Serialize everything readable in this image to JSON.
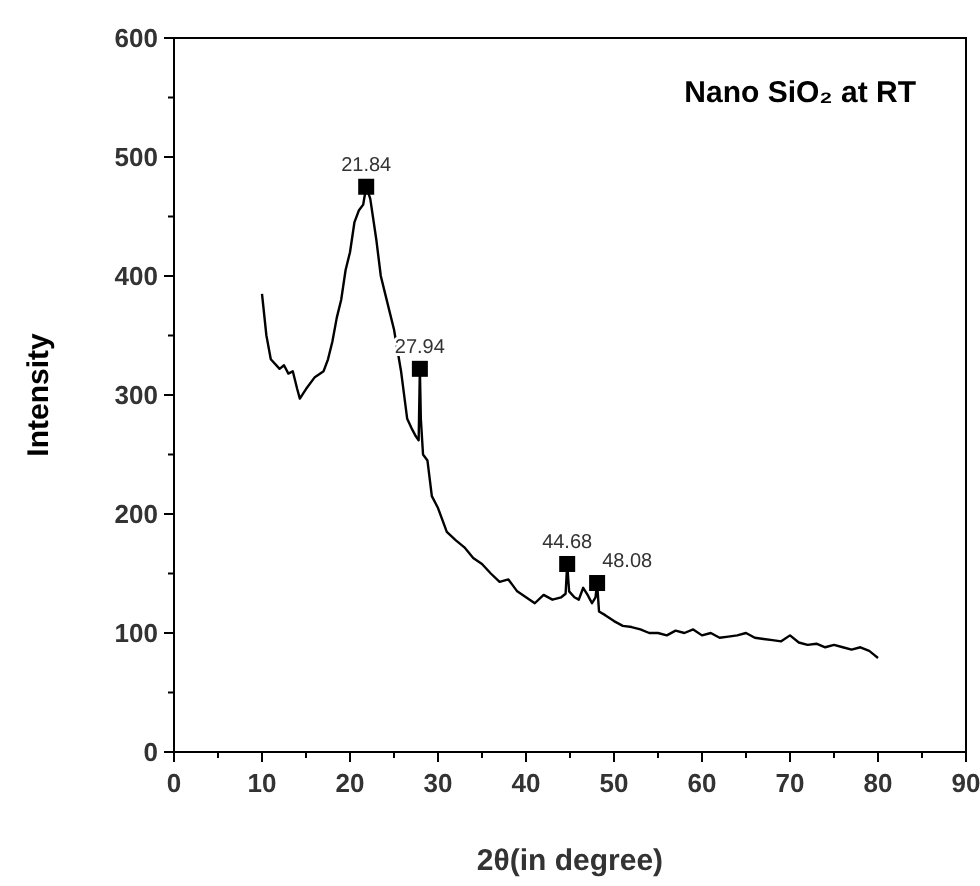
{
  "chart_data": {
    "type": "line",
    "title": "Nano SiO₂ at RT",
    "xlabel": "2θ(in degree)",
    "ylabel": "Intensity",
    "xlim": [
      0,
      90
    ],
    "ylim": [
      0,
      600
    ],
    "xticks": [
      0,
      {
        "value": 5,
        "label": null
      },
      10,
      {
        "value": 15,
        "label": null
      },
      20,
      {
        "value": 25,
        "label": null
      },
      30,
      {
        "value": 35,
        "label": null
      },
      40,
      {
        "value": 45,
        "label": null
      },
      50,
      {
        "value": 55,
        "label": null
      },
      60,
      {
        "value": 65,
        "label": null
      },
      70,
      {
        "value": 75,
        "label": null
      },
      80,
      {
        "value": 85,
        "label": null
      },
      90
    ],
    "yticks": [
      0,
      {
        "value": 50,
        "label": null
      },
      100,
      {
        "value": 150,
        "label": null
      },
      200,
      {
        "value": 250,
        "label": null
      },
      300,
      {
        "value": 350,
        "label": null
      },
      400,
      {
        "value": 450,
        "label": null
      },
      500,
      {
        "value": 550,
        "label": null
      },
      600
    ],
    "grid": false,
    "line_style": "solid",
    "series": [
      {
        "color": "#000000",
        "marker": "none",
        "x": [
          10,
          10.5,
          11,
          12,
          12.5,
          13,
          13.5,
          14,
          14.3,
          15,
          16,
          17,
          17.5,
          18,
          18.5,
          19,
          19.5,
          20,
          20.5,
          21,
          21.5,
          21.84,
          22.3,
          23,
          23.5,
          24,
          25,
          25.8,
          26.5,
          27,
          27.5,
          27.8,
          27.94,
          28.05,
          28.3,
          28.8,
          29.3,
          30,
          31,
          32,
          33,
          34,
          35,
          36,
          37,
          38,
          38.5,
          39,
          40,
          41,
          42,
          43,
          44,
          44.5,
          44.68,
          44.9,
          45.5,
          46,
          46.5,
          47,
          47.5,
          47.9,
          48.08,
          48.3,
          49,
          50,
          51,
          52,
          53,
          54,
          55,
          56,
          57,
          58,
          59,
          60,
          61,
          62,
          63,
          64,
          65,
          66,
          67,
          68,
          69,
          70,
          71,
          72,
          73,
          74,
          75,
          76,
          77,
          78,
          79,
          79.5,
          80
        ],
        "values": [
          385,
          350,
          330,
          322,
          325,
          318,
          320,
          305,
          297,
          305,
          315,
          320,
          330,
          345,
          365,
          380,
          405,
          420,
          445,
          455,
          460,
          475,
          465,
          430,
          400,
          385,
          355,
          320,
          280,
          272,
          265,
          262,
          322,
          280,
          250,
          245,
          215,
          205,
          185,
          178,
          172,
          163,
          158,
          150,
          143,
          145,
          140,
          135,
          130,
          125,
          132,
          128,
          130,
          133,
          158,
          135,
          130,
          128,
          138,
          132,
          125,
          130,
          142,
          118,
          115,
          110,
          106,
          105,
          103,
          100,
          100,
          98,
          102,
          100,
          103,
          98,
          100,
          96,
          97,
          98,
          100,
          96,
          95,
          94,
          93,
          98,
          92,
          90,
          91,
          88,
          90,
          88,
          86,
          88,
          85,
          82,
          79
        ]
      },
      {
        "type": "scatter",
        "color": "#000000",
        "marker": "square",
        "x": [
          21.84,
          27.94,
          44.68,
          48.08
        ],
        "values": [
          475,
          322,
          158,
          142
        ]
      }
    ],
    "annotations": [
      {
        "text": "21.84",
        "x": 21.84,
        "y": 475
      },
      {
        "text": "27.94",
        "x": 27.94,
        "y": 322
      },
      {
        "text": "44.68",
        "x": 44.68,
        "y": 158
      },
      {
        "text": "48.08",
        "x": 48.08,
        "y": 142
      }
    ]
  }
}
